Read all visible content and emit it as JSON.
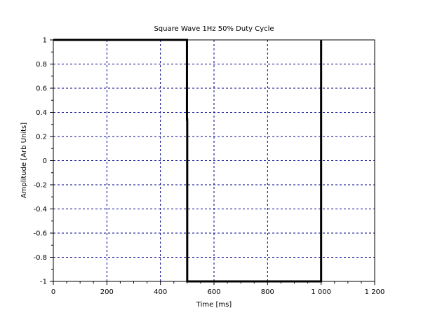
{
  "chart_data": {
    "type": "line",
    "title": "Square Wave 1Hz 50% Duty Cycle",
    "xlabel": "Time [ms]",
    "ylabel": "Amplitude [Arb Units]",
    "xlim": [
      0,
      1200
    ],
    "ylim": [
      -1,
      1
    ],
    "x_ticks": [
      0,
      200,
      400,
      600,
      800,
      1000,
      1200
    ],
    "x_tick_labels": [
      "0",
      "200",
      "400",
      "600",
      "800",
      "1 000",
      "1 200"
    ],
    "y_ticks": [
      -1,
      -0.8,
      -0.6,
      -0.4,
      -0.2,
      0,
      0.2,
      0.4,
      0.6,
      0.8,
      1
    ],
    "y_tick_labels": [
      "-1",
      "-0.8",
      "-0.6",
      "-0.4",
      "-0.2",
      "0",
      "0.2",
      "0.4",
      "0.6",
      "0.8",
      "1"
    ],
    "grid": true,
    "grid_color": "#00008b",
    "line_color": "#000000",
    "series": [
      {
        "x": [
          0,
          499,
          499,
          500,
          500,
          1000,
          1000
        ],
        "y": [
          1,
          1,
          0.34,
          0.34,
          -1,
          -1,
          1
        ]
      }
    ]
  }
}
